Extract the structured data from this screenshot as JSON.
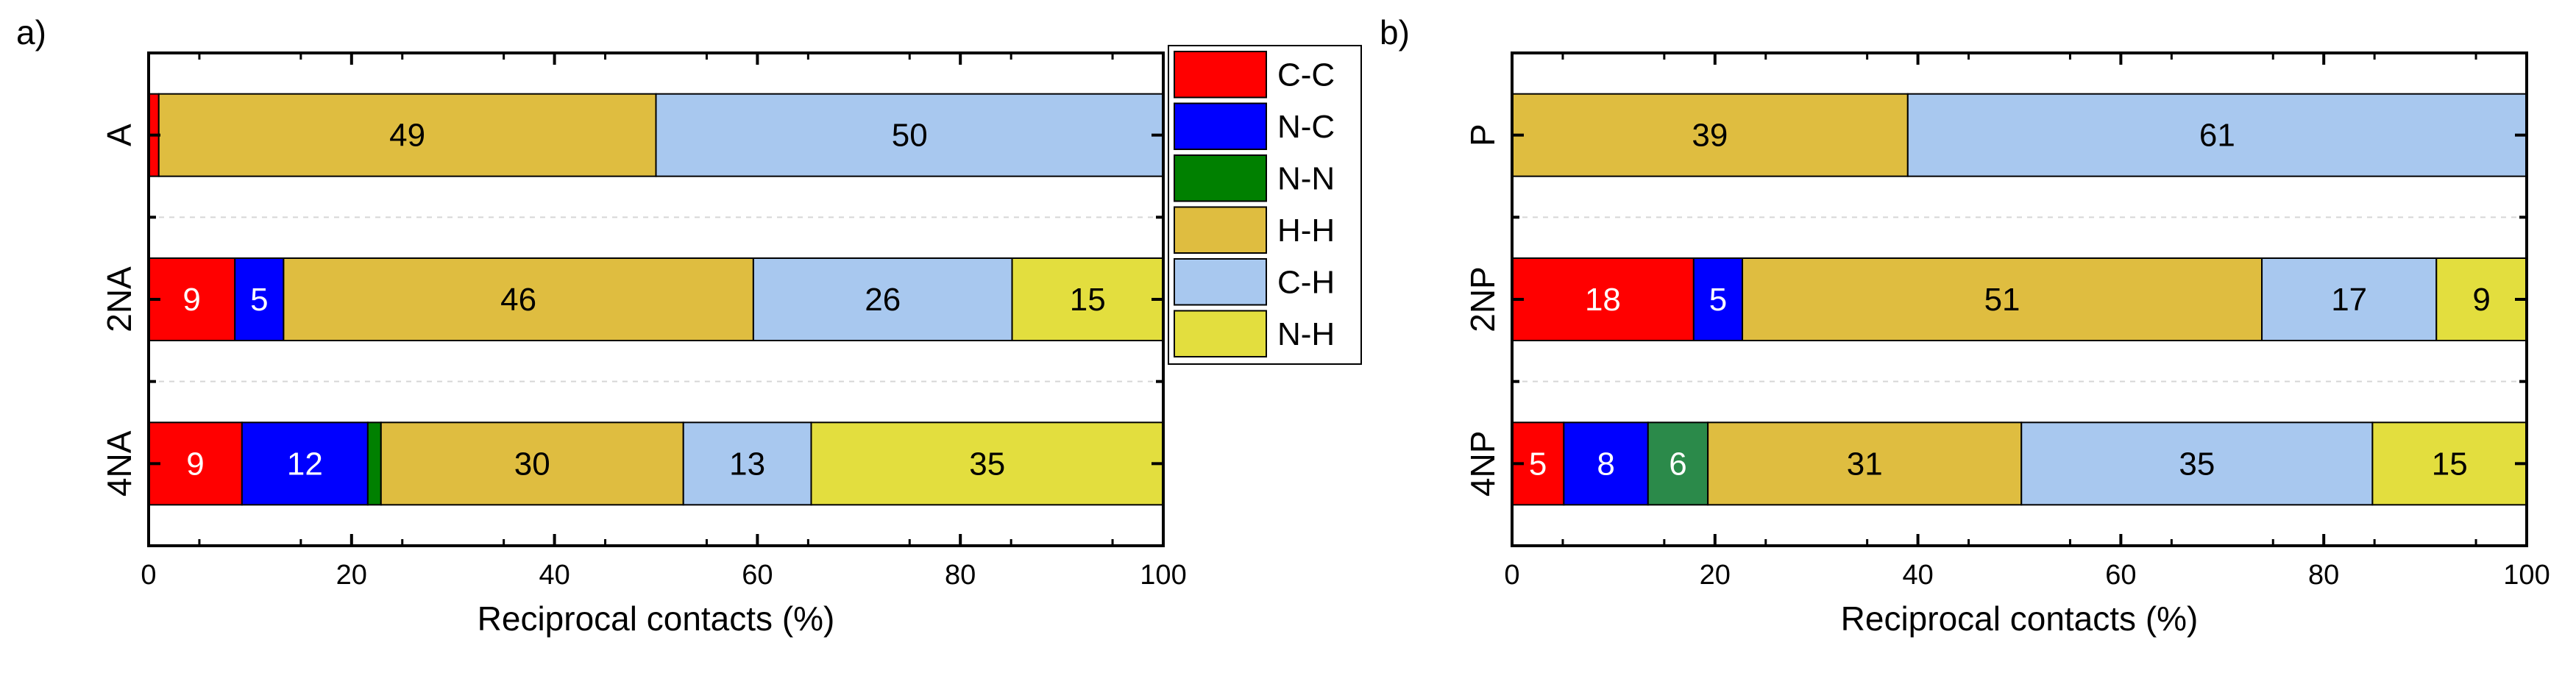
{
  "colors": {
    "C-C": "#ff0000",
    "N-C": "#0000ff",
    "N-N": "#008000",
    "N-N-b": "#2b8a4a",
    "H-H": "#dfbd40",
    "C-H": "#a8c8ef",
    "N-H": "#e3de3e"
  },
  "legend": {
    "placement": "between-panels-top",
    "items": [
      {
        "label": "C-C",
        "color_key": "C-C"
      },
      {
        "label": "N-C",
        "color_key": "N-C"
      },
      {
        "label": "N-N",
        "color_key": "N-N"
      },
      {
        "label": "H-H",
        "color_key": "H-H"
      },
      {
        "label": "C-H",
        "color_key": "C-H"
      },
      {
        "label": "N-H",
        "color_key": "N-H"
      }
    ]
  },
  "chart_data": [
    {
      "type": "bar",
      "orientation": "horizontal",
      "stacked": true,
      "panel_label": "a)",
      "xlabel": "Reciprocal contacts (%)",
      "xlim": [
        0,
        100
      ],
      "xticks": [
        0,
        20,
        40,
        60,
        80,
        100
      ],
      "grid": "dashed-horizontal",
      "categories": [
        "A",
        "2NA",
        "4NA"
      ],
      "bars": [
        {
          "category": "A",
          "segments": [
            {
              "name": "C-C",
              "value": 1,
              "label": "",
              "color_key": "C-C"
            },
            {
              "name": "H-H",
              "value": 49,
              "label": "49",
              "color_key": "H-H"
            },
            {
              "name": "C-H",
              "value": 50,
              "label": "50",
              "color_key": "C-H"
            }
          ]
        },
        {
          "category": "2NA",
          "segments": [
            {
              "name": "C-C",
              "value": 8.5,
              "label": "9",
              "color_key": "C-C"
            },
            {
              "name": "N-C",
              "value": 4.8,
              "label": "5",
              "color_key": "N-C"
            },
            {
              "name": "H-H",
              "value": 46.3,
              "label": "46",
              "color_key": "H-H"
            },
            {
              "name": "C-H",
              "value": 25.5,
              "label": "26",
              "color_key": "C-H"
            },
            {
              "name": "N-H",
              "value": 14.9,
              "label": "15",
              "color_key": "N-H"
            }
          ]
        },
        {
          "category": "4NA",
          "segments": [
            {
              "name": "C-C",
              "value": 9.2,
              "label": "9",
              "color_key": "C-C"
            },
            {
              "name": "N-C",
              "value": 12.4,
              "label": "12",
              "color_key": "N-C"
            },
            {
              "name": "N-N",
              "value": 1.3,
              "label": "",
              "color_key": "N-N"
            },
            {
              "name": "H-H",
              "value": 29.8,
              "label": "30",
              "color_key": "H-H"
            },
            {
              "name": "C-H",
              "value": 12.6,
              "label": "13",
              "color_key": "C-H"
            },
            {
              "name": "N-H",
              "value": 34.7,
              "label": "35",
              "color_key": "N-H"
            }
          ]
        }
      ]
    },
    {
      "type": "bar",
      "orientation": "horizontal",
      "stacked": true,
      "panel_label": "b)",
      "xlabel": "Reciprocal contacts (%)",
      "xlim": [
        0,
        100
      ],
      "xticks": [
        0,
        20,
        40,
        60,
        80,
        100
      ],
      "grid": "dashed-horizontal",
      "categories": [
        "P",
        "2NP",
        "4NP"
      ],
      "bars": [
        {
          "category": "P",
          "segments": [
            {
              "name": "H-H",
              "value": 39,
              "label": "39",
              "color_key": "H-H"
            },
            {
              "name": "C-H",
              "value": 61,
              "label": "61",
              "color_key": "C-H"
            }
          ]
        },
        {
          "category": "2NP",
          "segments": [
            {
              "name": "C-C",
              "value": 17.9,
              "label": "18",
              "color_key": "C-C"
            },
            {
              "name": "N-C",
              "value": 4.8,
              "label": "5",
              "color_key": "N-C"
            },
            {
              "name": "H-H",
              "value": 51.2,
              "label": "51",
              "color_key": "H-H"
            },
            {
              "name": "C-H",
              "value": 17.2,
              "label": "17",
              "color_key": "C-H"
            },
            {
              "name": "N-H",
              "value": 8.9,
              "label": "9",
              "color_key": "N-H"
            }
          ]
        },
        {
          "category": "4NP",
          "segments": [
            {
              "name": "C-C",
              "value": 5.1,
              "label": "5",
              "color_key": "C-C"
            },
            {
              "name": "N-C",
              "value": 8.3,
              "label": "8",
              "color_key": "N-C"
            },
            {
              "name": "N-N",
              "value": 5.9,
              "label": "6",
              "color_key": "N-N-b"
            },
            {
              "name": "H-H",
              "value": 30.9,
              "label": "31",
              "color_key": "H-H"
            },
            {
              "name": "C-H",
              "value": 34.6,
              "label": "35",
              "color_key": "C-H"
            },
            {
              "name": "N-H",
              "value": 15.2,
              "label": "15",
              "color_key": "N-H"
            }
          ]
        }
      ]
    }
  ]
}
